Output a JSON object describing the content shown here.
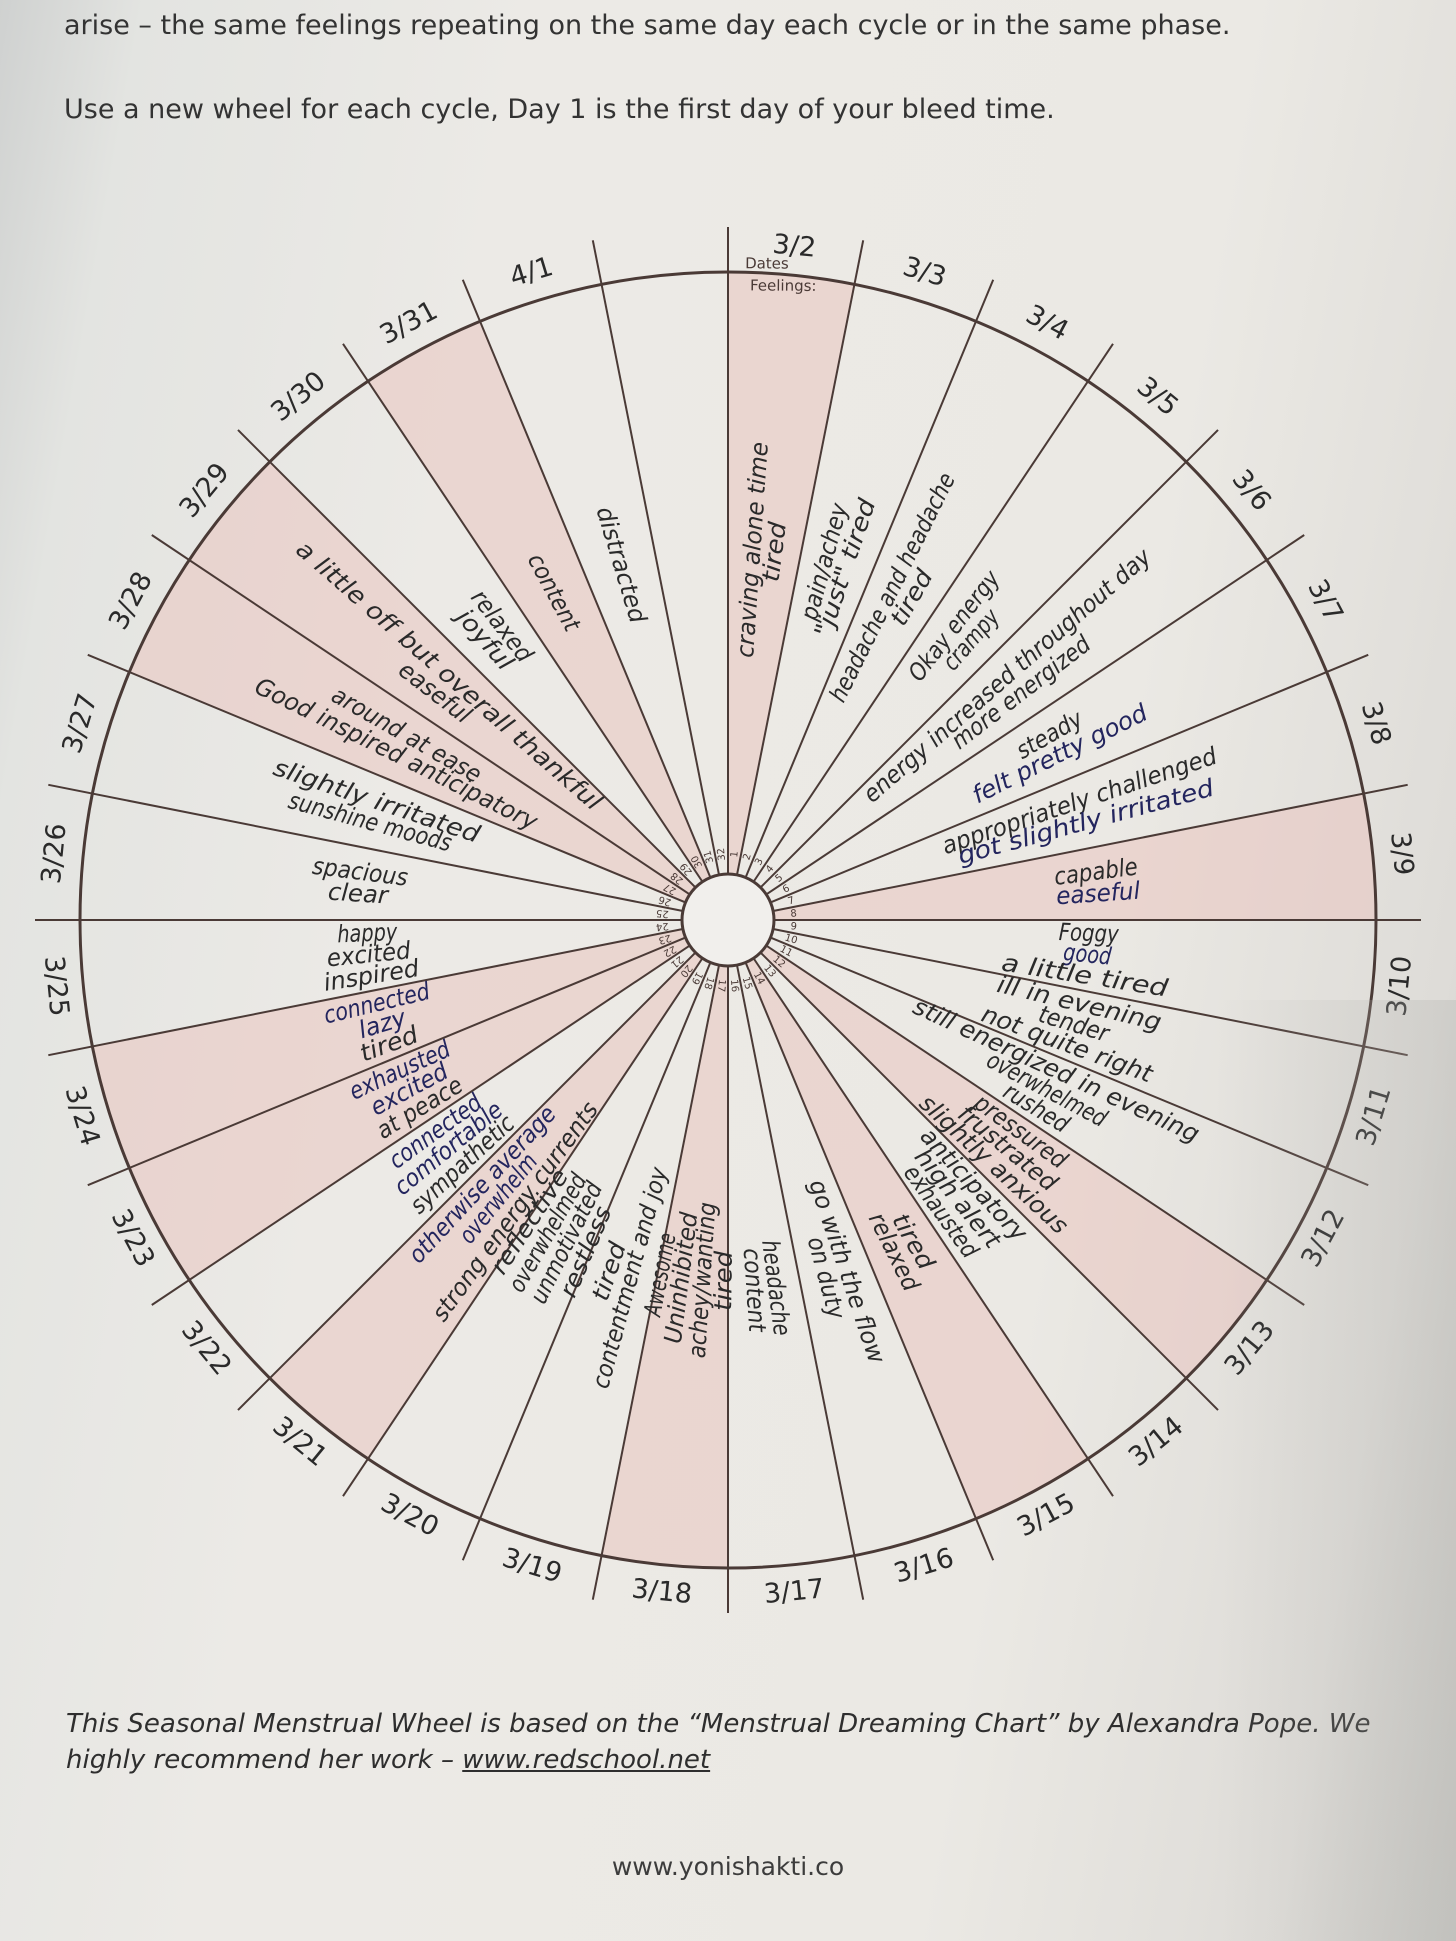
{
  "header": {
    "line1": "arise – the same feelings repeating on the same day each cycle or in the same phase.",
    "line2": "Use a new wheel for each cycle, Day 1 is the first day of your bleed time."
  },
  "wheel": {
    "dates_label": "Dates",
    "feelings_label": "Feelings:",
    "days": [
      {
        "day": "1",
        "date": "3/2",
        "feelings": [
          "craving alone time",
          "tired"
        ],
        "tinted": true
      },
      {
        "day": "2",
        "date": "3/3",
        "feelings": [
          "pain/achey",
          "\"just\" tired"
        ],
        "tinted": false
      },
      {
        "day": "3",
        "date": "3/4",
        "feelings": [
          "headache and headache",
          "tired"
        ],
        "tinted": false
      },
      {
        "day": "4",
        "date": "3/5",
        "feelings": [
          "Okay energy",
          "crampy"
        ],
        "tinted": false
      },
      {
        "day": "5",
        "date": "3/6",
        "feelings": [
          "energy increased throughout day",
          "more energized"
        ],
        "tinted": false
      },
      {
        "day": "6",
        "date": "3/7",
        "feelings": [
          "steady",
          "felt pretty good"
        ],
        "tinted": false
      },
      {
        "day": "7",
        "date": "3/8",
        "feelings": [
          "appropriately challenged",
          "got slightly irritated"
        ],
        "tinted": false
      },
      {
        "day": "8",
        "date": "3/9",
        "feelings": [
          "capable",
          "easeful"
        ],
        "tinted": true
      },
      {
        "day": "9",
        "date": "3/10",
        "feelings": [
          "Foggy",
          "good",
          "a little tired"
        ],
        "tinted": false
      },
      {
        "day": "10",
        "date": "3/11",
        "feelings": [
          "ill in evening",
          "tender",
          "not quite right"
        ],
        "tinted": false
      },
      {
        "day": "11",
        "date": "3/12",
        "feelings": [
          "still energized in evening",
          "overwhelmed",
          "rushed"
        ],
        "tinted": false
      },
      {
        "day": "12",
        "date": "3/13",
        "feelings": [
          "pressured",
          "frustrated",
          "slightly anxious"
        ],
        "tinted": true
      },
      {
        "day": "13",
        "date": "3/14",
        "feelings": [
          "anticipatory",
          "high alert",
          "exhausted"
        ],
        "tinted": false
      },
      {
        "day": "14",
        "date": "3/15",
        "feelings": [
          "tired",
          "relaxed"
        ],
        "tinted": true
      },
      {
        "day": "15",
        "date": "3/16",
        "feelings": [
          "go with the flow",
          "on duty"
        ],
        "tinted": false
      },
      {
        "day": "16",
        "date": "3/17",
        "feelings": [
          "headache",
          "content"
        ],
        "tinted": false
      },
      {
        "day": "17",
        "date": "3/18",
        "feelings": [
          "tired",
          "achey/wanting",
          "Uninhibited",
          "Awesome"
        ],
        "tinted": true
      },
      {
        "day": "18",
        "date": "3/19",
        "feelings": [
          "contentment and joy",
          "tired"
        ],
        "tinted": false
      },
      {
        "day": "19",
        "date": "3/20",
        "feelings": [
          "restless",
          "unmotivated",
          "overwhelmed",
          "reflective"
        ],
        "tinted": false
      },
      {
        "day": "20",
        "date": "3/21",
        "feelings": [
          "strong energy currents",
          "overwhelm",
          "otherwise average"
        ],
        "tinted": true
      },
      {
        "day": "21",
        "date": "3/22",
        "feelings": [
          "sympathetic",
          "comfortable",
          "connected"
        ],
        "tinted": false
      },
      {
        "day": "22",
        "date": "3/23",
        "feelings": [
          "at peace",
          "excited",
          "exhausted"
        ],
        "tinted": true
      },
      {
        "day": "23",
        "date": "3/24",
        "feelings": [
          "tired",
          "lazy",
          "connected"
        ],
        "tinted": true
      },
      {
        "day": "24",
        "date": "3/25",
        "feelings": [
          "inspired",
          "excited",
          "happy"
        ],
        "tinted": false
      },
      {
        "day": "25",
        "date": "3/26",
        "feelings": [
          "clear",
          "spacious"
        ],
        "tinted": false
      },
      {
        "day": "26",
        "date": "3/27",
        "feelings": [
          "sunshine moods",
          "slightly irritated"
        ],
        "tinted": false
      },
      {
        "day": "27",
        "date": "3/28",
        "feelings": [
          "Good inspired anticipatory",
          "around at ease"
        ],
        "tinted": true
      },
      {
        "day": "28",
        "date": "3/29",
        "feelings": [
          "easeful",
          "a little off but overall thankful"
        ],
        "tinted": true
      },
      {
        "day": "29",
        "date": "3/30",
        "feelings": [
          "joyful",
          "relaxed"
        ],
        "tinted": false
      },
      {
        "day": "30",
        "date": "3/31",
        "feelings": [
          "content"
        ],
        "tinted": true
      },
      {
        "day": "31",
        "date": "4/1",
        "feelings": [
          "distracted"
        ],
        "tinted": false
      },
      {
        "day": "32",
        "date": "",
        "feelings": [],
        "tinted": false
      }
    ]
  },
  "footer": {
    "note_prefix": "This Seasonal Menstrual Wheel is based on the “Menstrual Dreaming Chart” by Alexandra Pope. We highly recommend her work – ",
    "note_link": "www.redschool.net",
    "site": "www.yonishakti.co"
  },
  "colors": {
    "line": "#4a3a36",
    "tint": "#e9c4c0",
    "ink_black": "#2a2a2a",
    "ink_blue": "#23255e"
  }
}
